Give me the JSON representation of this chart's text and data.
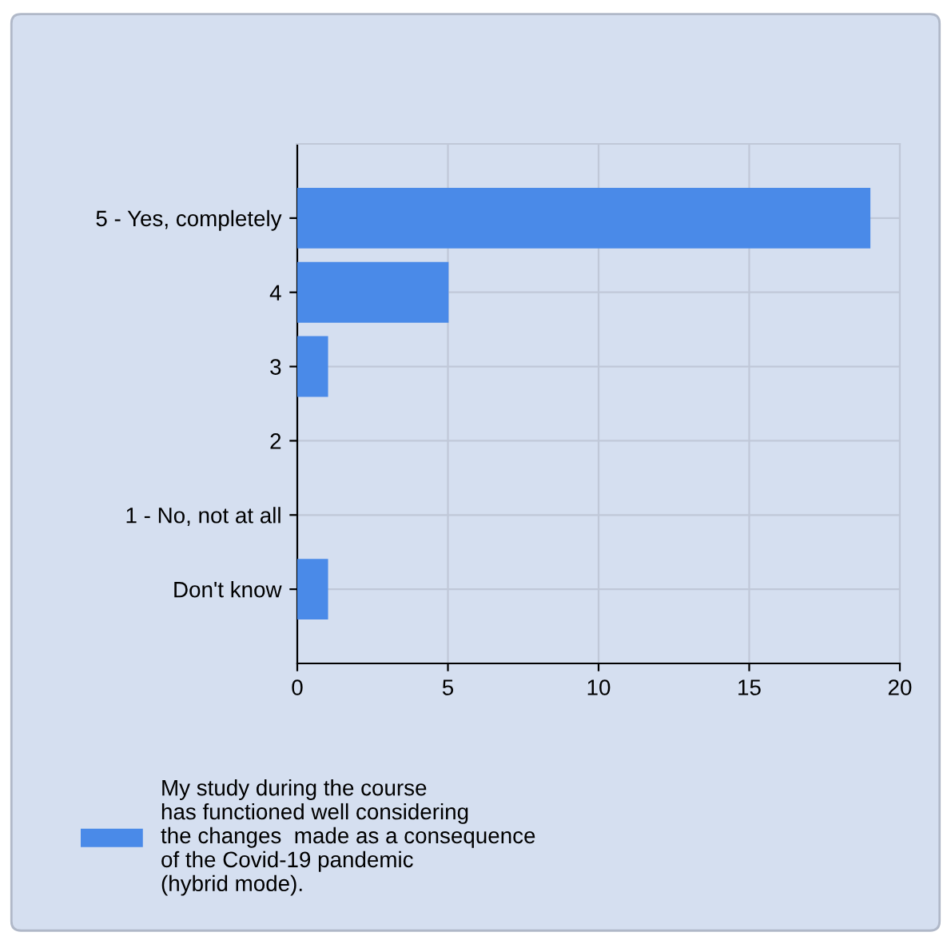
{
  "chart_data": {
    "type": "bar",
    "orientation": "horizontal",
    "categories": [
      "5 - Yes, completely",
      "4",
      "3",
      "2",
      "1 - No, not at all",
      "Don't know"
    ],
    "series": [
      {
        "name": "My study during the course\nhas functioned well considering\nthe changes  made as a consequence\nof the Covid-19 pandemic\n(hybrid mode).",
        "color": "#4a8ae8",
        "values": [
          19,
          5,
          1,
          0,
          0,
          1
        ]
      }
    ],
    "xlim": [
      0,
      20
    ],
    "xticks": [
      0,
      5,
      10,
      15,
      20
    ],
    "grid": true,
    "legend": "bottom"
  }
}
